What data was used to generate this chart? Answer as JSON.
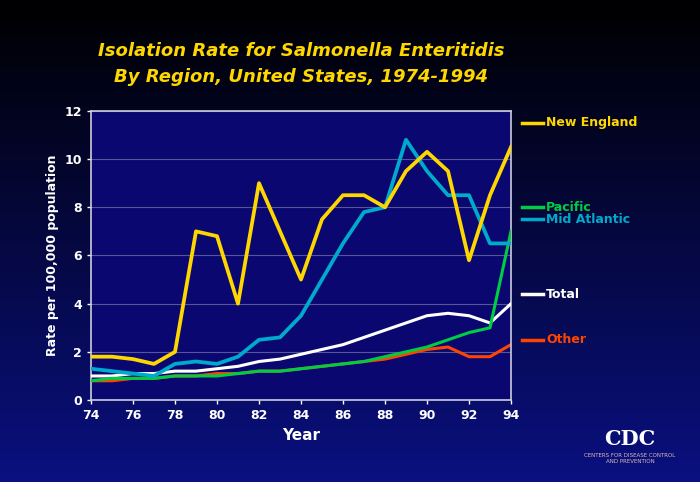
{
  "title_line1": "Isolation Rate for Salmonella Enteritidis",
  "title_line2": "By Region, United States, 1974-1994",
  "xlabel": "Year",
  "ylabel": "Rate per 100,000 population",
  "bg_top_color": "#000000",
  "bg_bottom_color": "#0A0A8A",
  "plot_bg_color": "#0A0A7A",
  "title_color": "#FFD700",
  "axis_label_color": "#FFFFFF",
  "tick_label_color": "#FFFFFF",
  "grid_color": "#7777AA",
  "spine_color": "#CCCCDD",
  "years": [
    74,
    75,
    76,
    77,
    78,
    79,
    80,
    81,
    82,
    83,
    84,
    85,
    86,
    87,
    88,
    89,
    90,
    91,
    92,
    93,
    94
  ],
  "new_england": {
    "values": [
      1.8,
      1.8,
      1.7,
      1.5,
      2.0,
      7.0,
      6.8,
      4.0,
      9.0,
      7.0,
      5.0,
      7.5,
      8.5,
      8.5,
      8.0,
      9.5,
      10.3,
      9.5,
      5.8,
      8.5,
      10.5
    ],
    "color": "#FFD700",
    "label": "New England"
  },
  "mid_atlantic": {
    "values": [
      1.3,
      1.2,
      1.1,
      1.0,
      1.5,
      1.6,
      1.5,
      1.8,
      2.5,
      2.6,
      3.5,
      5.0,
      6.5,
      7.8,
      8.0,
      10.8,
      9.5,
      8.5,
      8.5,
      6.5,
      6.5
    ],
    "color": "#00AACC",
    "label": "Mid Atlantic"
  },
  "pacific": {
    "values": [
      0.8,
      0.9,
      0.9,
      0.9,
      1.0,
      1.0,
      1.0,
      1.1,
      1.2,
      1.2,
      1.3,
      1.4,
      1.5,
      1.6,
      1.8,
      2.0,
      2.2,
      2.5,
      2.8,
      3.0,
      7.0
    ],
    "color": "#00CC44",
    "label": "Pacific"
  },
  "total": {
    "values": [
      1.0,
      1.0,
      1.1,
      1.1,
      1.2,
      1.2,
      1.3,
      1.4,
      1.6,
      1.7,
      1.9,
      2.1,
      2.3,
      2.6,
      2.9,
      3.2,
      3.5,
      3.6,
      3.5,
      3.2,
      4.0
    ],
    "color": "#FFFFFF",
    "label": "Total"
  },
  "other": {
    "values": [
      0.8,
      0.8,
      0.9,
      0.9,
      1.0,
      1.0,
      1.1,
      1.1,
      1.2,
      1.2,
      1.3,
      1.4,
      1.5,
      1.6,
      1.7,
      1.9,
      2.1,
      2.2,
      1.8,
      1.8,
      2.3
    ],
    "color": "#FF4400",
    "label": "Other"
  },
  "ylim": [
    0,
    12
  ],
  "yticks": [
    0,
    2,
    4,
    6,
    8,
    10,
    12
  ],
  "line_width": 2.2,
  "legend_items": [
    {
      "label": "New England",
      "color": "#FFD700"
    },
    {
      "label": "Pacific",
      "color": "#00CC44"
    },
    {
      "label": "Mid Atlantic",
      "color": "#00AACC"
    },
    {
      "label": "Total",
      "color": "#FFFFFF"
    },
    {
      "label": "Other",
      "color": "#FF4400"
    }
  ]
}
